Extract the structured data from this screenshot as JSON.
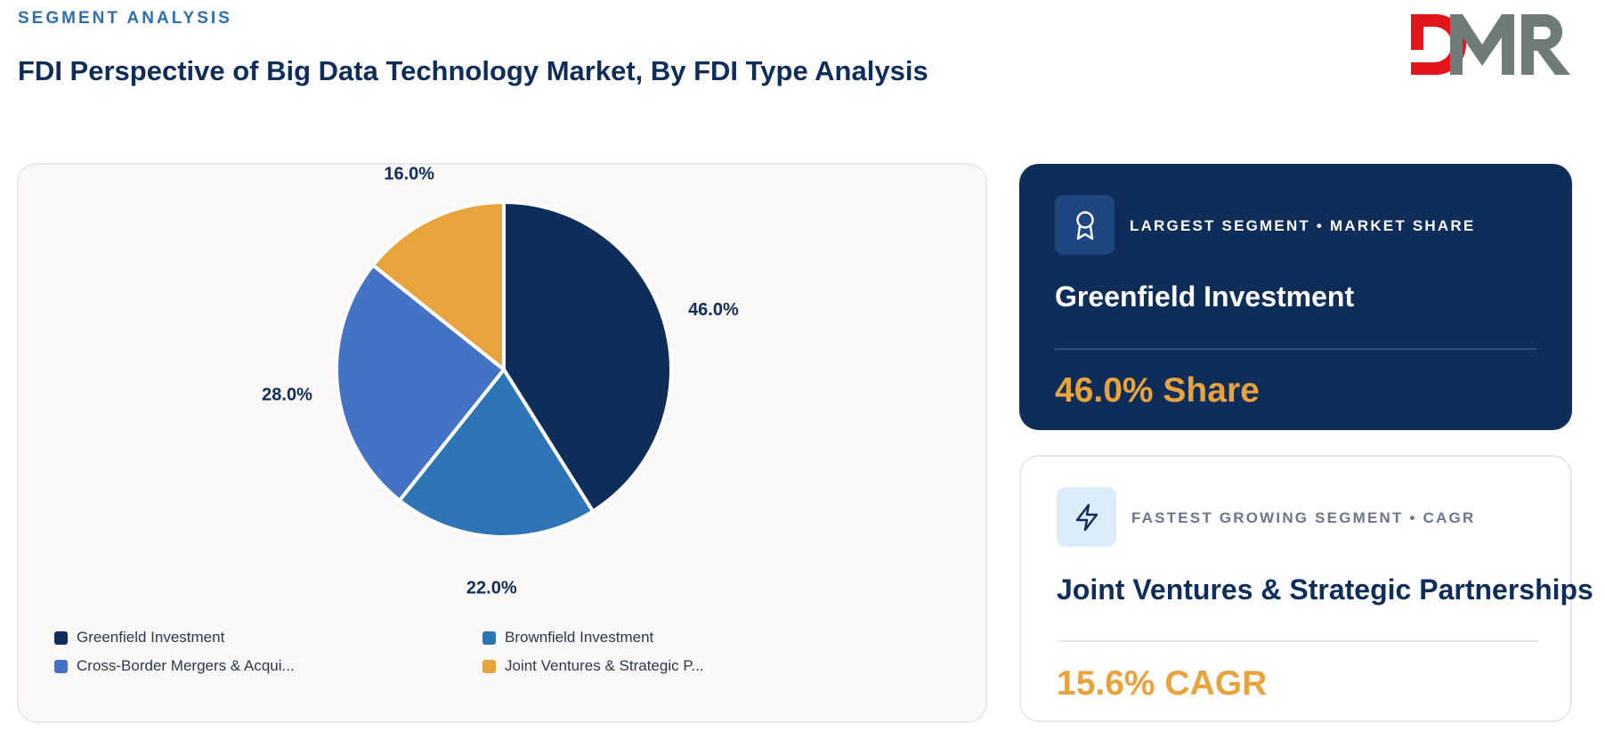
{
  "header": {
    "eyebrow": "SEGMENT ANALYSIS",
    "title": "FDI Perspective of Big Data Technology Market, By FDI Type Analysis"
  },
  "logo": {
    "text": "DMR",
    "colors": {
      "d": "#e3161c",
      "m": "#6f7b78",
      "r": "#6f7b78"
    }
  },
  "chart_data": {
    "type": "pie",
    "title": "",
    "categories": [
      "Greenfield Investment",
      "Brownfield Investment",
      "Cross-Border Mergers & Acquisitions",
      "Joint Ventures & Strategic Partnerships"
    ],
    "values": [
      46.0,
      22.0,
      28.0,
      16.0
    ],
    "labels": [
      "46.0%",
      "22.0%",
      "28.0%",
      "16.0%"
    ],
    "colors": [
      "#0e2d59",
      "#2e75b6",
      "#4472c4",
      "#e8a33d"
    ],
    "legend_position": "bottom",
    "legend_labels": [
      "Greenfield Investment",
      "Brownfield Investment",
      "Cross-Border Mergers & Acqui...",
      "Joint Ventures & Strategic P..."
    ]
  },
  "cards": {
    "largest": {
      "icon": "award-ribbon-icon",
      "label": "LARGEST SEGMENT • MARKET SHARE",
      "name": "Greenfield Investment",
      "value": "46.0% Share"
    },
    "fastest": {
      "icon": "lightning-bolt-icon",
      "label": "FASTEST GROWING SEGMENT • CAGR",
      "name": "Joint Ventures & Strategic Partnerships",
      "value": "15.6% CAGR"
    }
  }
}
